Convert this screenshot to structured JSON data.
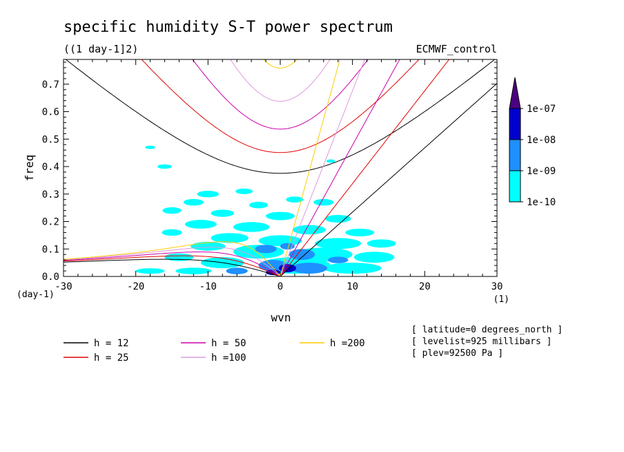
{
  "chart_data": {
    "type": "contour",
    "title": "specific humidity S-T power spectrum",
    "subtitle": "((1 day-1]2)",
    "dataset": "ECMWF_control",
    "xlabel": "wvn",
    "ylabel": "freq",
    "x_unit_label": "(1)",
    "y_unit_label": "(day-1)",
    "xlim": [
      -30,
      30
    ],
    "ylim": [
      0,
      0.79
    ],
    "x_ticks": [
      "-30",
      "-20",
      "-10",
      "0",
      "10",
      "20",
      "30"
    ],
    "x_tick_values": [
      -30,
      -20,
      -10,
      0,
      10,
      20,
      30
    ],
    "y_ticks": [
      "0.0",
      "0.1",
      "0.2",
      "0.3",
      "0.4",
      "0.5",
      "0.6",
      "0.7"
    ],
    "y_tick_values": [
      0,
      0.1,
      0.2,
      0.3,
      0.4,
      0.5,
      0.6,
      0.7
    ],
    "colorbar": {
      "labels": [
        "1e-10",
        "1e-09",
        "1e-08",
        "1e-07"
      ],
      "colors": [
        "#00ffff",
        "#1e90ff",
        "#0000cd",
        "#4b0082"
      ]
    },
    "series": [
      {
        "name": "h = 12",
        "h": 12,
        "color": "#000000"
      },
      {
        "name": "h = 25",
        "h": 25,
        "color": "#e00000"
      },
      {
        "name": "h = 50",
        "h": 50,
        "color": "#cc00aa"
      },
      {
        "name": "h =100",
        "h": 100,
        "color": "#dd99dd"
      },
      {
        "name": "h =200",
        "h": 200,
        "color": "#ffcc00"
      }
    ],
    "info": [
      "[ latitude=0 degrees_north ]",
      "[ levelist=925 millibars ]",
      "[ plev=92500 Pa ]"
    ],
    "shaded_regions": [
      {
        "level": "1e-10",
        "x": -10,
        "y": 0.3,
        "rx": 1.5,
        "ry": 0.012
      },
      {
        "level": "1e-10",
        "x": -5,
        "y": 0.31,
        "rx": 1.2,
        "ry": 0.01
      },
      {
        "level": "1e-10",
        "x": -12,
        "y": 0.27,
        "rx": 1.4,
        "ry": 0.012
      },
      {
        "level": "1e-10",
        "x": -3,
        "y": 0.26,
        "rx": 1.3,
        "ry": 0.012
      },
      {
        "level": "1e-10",
        "x": 2,
        "y": 0.28,
        "rx": 1.2,
        "ry": 0.011
      },
      {
        "level": "1e-10",
        "x": 6,
        "y": 0.27,
        "rx": 1.4,
        "ry": 0.012
      },
      {
        "level": "1e-10",
        "x": -15,
        "y": 0.24,
        "rx": 1.3,
        "ry": 0.012
      },
      {
        "level": "1e-10",
        "x": -8,
        "y": 0.23,
        "rx": 1.6,
        "ry": 0.013
      },
      {
        "level": "1e-10",
        "x": 0,
        "y": 0.22,
        "rx": 2.0,
        "ry": 0.015
      },
      {
        "level": "1e-10",
        "x": 8,
        "y": 0.21,
        "rx": 1.8,
        "ry": 0.014
      },
      {
        "level": "1e-10",
        "x": -11,
        "y": 0.19,
        "rx": 2.2,
        "ry": 0.016
      },
      {
        "level": "1e-10",
        "x": -4,
        "y": 0.18,
        "rx": 2.5,
        "ry": 0.018
      },
      {
        "level": "1e-10",
        "x": 4,
        "y": 0.17,
        "rx": 2.3,
        "ry": 0.017
      },
      {
        "level": "1e-10",
        "x": 11,
        "y": 0.16,
        "rx": 2.0,
        "ry": 0.014
      },
      {
        "level": "1e-10",
        "x": -15,
        "y": 0.16,
        "rx": 1.4,
        "ry": 0.012
      },
      {
        "level": "1e-10",
        "x": -7,
        "y": 0.14,
        "rx": 2.6,
        "ry": 0.018
      },
      {
        "level": "1e-10",
        "x": 0,
        "y": 0.13,
        "rx": 3.0,
        "ry": 0.02
      },
      {
        "level": "1e-10",
        "x": 8,
        "y": 0.12,
        "rx": 3.2,
        "ry": 0.02
      },
      {
        "level": "1e-10",
        "x": 14,
        "y": 0.12,
        "rx": 2.0,
        "ry": 0.015
      },
      {
        "level": "1e-10",
        "x": -10,
        "y": 0.11,
        "rx": 2.4,
        "ry": 0.016
      },
      {
        "level": "1e-10",
        "x": -3,
        "y": 0.09,
        "rx": 3.5,
        "ry": 0.025
      },
      {
        "level": "1e-10",
        "x": 6,
        "y": 0.08,
        "rx": 4.0,
        "ry": 0.025
      },
      {
        "level": "1e-10",
        "x": 13,
        "y": 0.07,
        "rx": 2.8,
        "ry": 0.02
      },
      {
        "level": "1e-10",
        "x": -14,
        "y": 0.07,
        "rx": 2.0,
        "ry": 0.014
      },
      {
        "level": "1e-10",
        "x": -8,
        "y": 0.05,
        "rx": 3.0,
        "ry": 0.02
      },
      {
        "level": "1e-10",
        "x": 2,
        "y": 0.04,
        "rx": 5.0,
        "ry": 0.03
      },
      {
        "level": "1e-10",
        "x": 10,
        "y": 0.03,
        "rx": 4.0,
        "ry": 0.02
      },
      {
        "level": "1e-10",
        "x": -18,
        "y": 0.02,
        "rx": 2.0,
        "ry": 0.01
      },
      {
        "level": "1e-10",
        "x": -12,
        "y": 0.02,
        "rx": 2.5,
        "ry": 0.012
      },
      {
        "level": "1e-10",
        "x": -16,
        "y": 0.4,
        "rx": 1.0,
        "ry": 0.008
      },
      {
        "level": "1e-10",
        "x": -18,
        "y": 0.47,
        "rx": 0.7,
        "ry": 0.006
      },
      {
        "level": "1e-10",
        "x": 7,
        "y": 0.42,
        "rx": 0.6,
        "ry": 0.006
      },
      {
        "level": "1e-09",
        "x": -2,
        "y": 0.1,
        "rx": 1.5,
        "ry": 0.015
      },
      {
        "level": "1e-09",
        "x": 3,
        "y": 0.08,
        "rx": 1.8,
        "ry": 0.02
      },
      {
        "level": "1e-09",
        "x": 8,
        "y": 0.06,
        "rx": 1.4,
        "ry": 0.012
      },
      {
        "level": "1e-09",
        "x": -1,
        "y": 0.04,
        "rx": 2.0,
        "ry": 0.02
      },
      {
        "level": "1e-09",
        "x": 4,
        "y": 0.03,
        "rx": 2.5,
        "ry": 0.02
      },
      {
        "level": "1e-09",
        "x": -6,
        "y": 0.02,
        "rx": 1.5,
        "ry": 0.012
      },
      {
        "level": "1e-09",
        "x": 1,
        "y": 0.11,
        "rx": 1.0,
        "ry": 0.012
      },
      {
        "level": "1e-08",
        "x": 1,
        "y": 0.03,
        "rx": 1.2,
        "ry": 0.015
      },
      {
        "level": "1e-08",
        "x": -1,
        "y": 0.015,
        "rx": 1.0,
        "ry": 0.01
      }
    ]
  }
}
